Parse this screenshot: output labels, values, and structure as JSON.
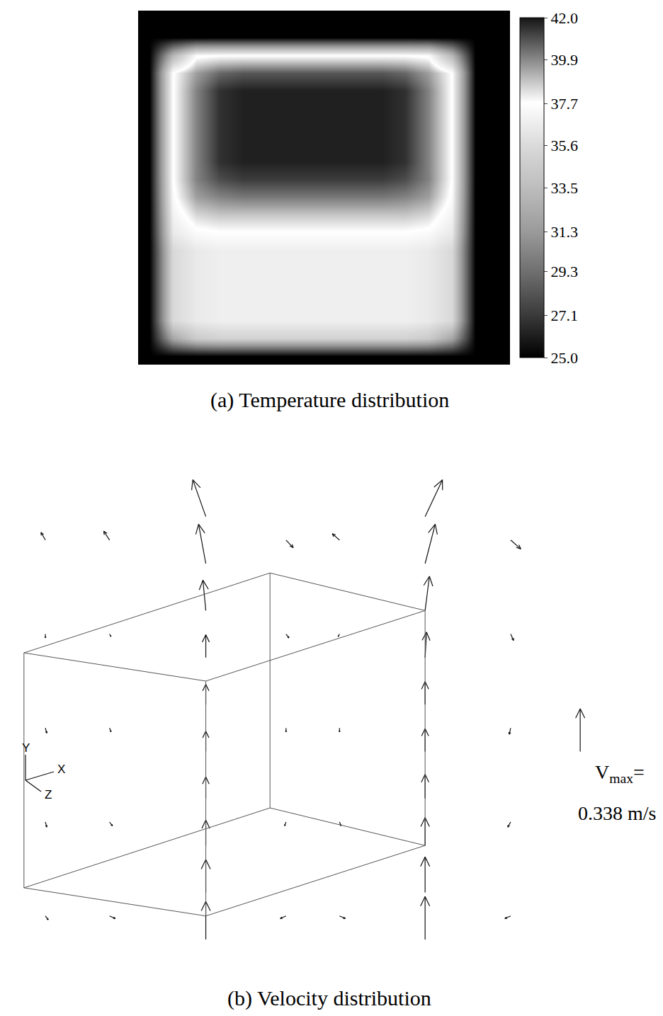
{
  "chart_data": [
    {
      "type": "heatmap",
      "title": "(a) Temperature distribution",
      "tick_labels": false,
      "z": [
        [
          25,
          25,
          25,
          25,
          25,
          25,
          25,
          25,
          25,
          25,
          25,
          25,
          25,
          25,
          25,
          25
        ],
        [
          25,
          25,
          25,
          25,
          25,
          25,
          25,
          25,
          25,
          25,
          25,
          25,
          25,
          25,
          25,
          25
        ],
        [
          25,
          33,
          37.5,
          37.7,
          37.7,
          37.7,
          37.7,
          37.7,
          37.7,
          37.7,
          37.7,
          37.7,
          37.5,
          33,
          25,
          25
        ],
        [
          25,
          37.7,
          39.5,
          40.5,
          40.8,
          40.8,
          40.8,
          40.8,
          40.8,
          40.8,
          40.8,
          40.5,
          39.5,
          37.7,
          25,
          25
        ],
        [
          25,
          37.7,
          40,
          41.5,
          41.8,
          41.8,
          41.8,
          41.8,
          41.8,
          41.8,
          41.8,
          41.5,
          40,
          37.7,
          25,
          25
        ],
        [
          25,
          37.7,
          40,
          41.5,
          41.8,
          41.8,
          41.8,
          41.8,
          41.8,
          41.8,
          41.8,
          41.5,
          40,
          37.7,
          25,
          25
        ],
        [
          25,
          37.7,
          40,
          41.5,
          41.8,
          41.8,
          41.8,
          41.8,
          41.8,
          41.8,
          41.8,
          41.5,
          40,
          37.7,
          25,
          25
        ],
        [
          25,
          37.7,
          40,
          41.5,
          41.8,
          41.8,
          41.8,
          41.8,
          41.8,
          41.8,
          41.8,
          41.5,
          40,
          37.7,
          25,
          25
        ],
        [
          25,
          37.7,
          40,
          41.5,
          41.8,
          41.8,
          41.8,
          41.8,
          41.8,
          41.8,
          41.8,
          41.5,
          40,
          37.7,
          25,
          25
        ],
        [
          25,
          37.7,
          40,
          41,
          41.3,
          41.3,
          41.3,
          41.3,
          41.3,
          41.3,
          41.3,
          41,
          40,
          37.7,
          25,
          25
        ],
        [
          25,
          37.5,
          39.5,
          40,
          40.2,
          40.2,
          40.2,
          40.2,
          40.2,
          40.2,
          40.2,
          40,
          39.5,
          37.5,
          25,
          25
        ],
        [
          25,
          37,
          38.5,
          38.8,
          38.8,
          38.8,
          38.8,
          38.8,
          38.8,
          38.8,
          38.8,
          38.8,
          38.5,
          37,
          25,
          25
        ],
        [
          25,
          36.5,
          37.5,
          37.7,
          37.7,
          37.7,
          37.7,
          37.7,
          37.7,
          37.7,
          37.7,
          37.7,
          37.5,
          36.5,
          25,
          25
        ],
        [
          25,
          35.5,
          36.5,
          36.8,
          36.8,
          36.8,
          36.8,
          36.8,
          36.8,
          36.8,
          36.8,
          36.8,
          36.5,
          35.5,
          25,
          25
        ],
        [
          25,
          35.5,
          36.5,
          36.8,
          36.8,
          36.8,
          36.8,
          36.8,
          36.8,
          36.8,
          36.8,
          36.8,
          36.5,
          35.5,
          25,
          25
        ],
        [
          25,
          35.5,
          36.5,
          36.8,
          36.8,
          36.8,
          36.8,
          36.8,
          36.8,
          36.8,
          36.8,
          36.8,
          36.5,
          35.5,
          25,
          25
        ],
        [
          25,
          35.5,
          36.5,
          36.8,
          36.8,
          36.8,
          36.8,
          36.8,
          36.8,
          36.8,
          36.8,
          36.8,
          36.5,
          35.5,
          25,
          25
        ],
        [
          25,
          35.5,
          36.5,
          36.8,
          36.8,
          36.8,
          36.8,
          36.8,
          36.8,
          36.8,
          36.8,
          36.8,
          36.5,
          35.5,
          25,
          25
        ],
        [
          25,
          32,
          34.5,
          35,
          35,
          35,
          35,
          35,
          35,
          35,
          35,
          35,
          34.5,
          32,
          25,
          25
        ],
        [
          25,
          25,
          25,
          25,
          25,
          25,
          25,
          25,
          25,
          25,
          25,
          25,
          25,
          25,
          25,
          25
        ]
      ],
      "colorbar": {
        "range": [
          25,
          42
        ],
        "ticks": [
          {
            "value": 42,
            "label": "42.0"
          },
          39.9,
          37.7,
          35.6,
          33.5,
          31.3,
          29.3,
          27.1,
          {
            "value": 25,
            "label": "25.0"
          }
        ]
      }
    },
    {
      "type": "vector_field",
      "title": "(b) Velocity distribution",
      "tick_labels": false,
      "axis_labels": {
        "x": "X",
        "y": "Y",
        "z": "Z"
      },
      "vectors": {
        "x": [
          3.5,
          3.5,
          3.5,
          3.5,
          3.5,
          3.5,
          3.5,
          3.5,
          3.5,
          3.5,
          7.6,
          7.6,
          7.6,
          7.6,
          7.6,
          7.6,
          7.6,
          7.6,
          7.6,
          7.6,
          0.5,
          0.5,
          0.5,
          0.5,
          0.5,
          1.7,
          1.7,
          1.7,
          1.7,
          1.7,
          5.0,
          5.0,
          5.0,
          5.0,
          5.0,
          6.0,
          6.0,
          6.0,
          6.0,
          6.0,
          9.2,
          9.2,
          9.2,
          9.2,
          9.2
        ],
        "y": [
          0.5,
          1.5,
          2.5,
          3.5,
          4.5,
          5.5,
          6.5,
          7.5,
          8.5,
          9.5,
          0.5,
          1.5,
          2.5,
          3.5,
          4.5,
          5.5,
          6.5,
          7.5,
          8.5,
          9.5,
          1,
          3,
          5,
          7,
          9,
          1,
          3,
          5,
          7,
          9,
          1,
          3,
          5,
          7,
          9,
          1,
          3,
          5,
          7,
          9,
          1,
          3,
          5,
          7,
          9
        ],
        "u": [
          0,
          0,
          0,
          0,
          0,
          0,
          0,
          -0.02,
          -0.05,
          -0.09,
          0,
          0,
          0,
          0,
          0,
          0,
          0.01,
          0.03,
          0.07,
          0.12,
          0.02,
          0.01,
          0.01,
          0.0,
          -0.03,
          0.04,
          0.02,
          0.01,
          0.01,
          -0.04,
          -0.04,
          -0.01,
          0.0,
          0.02,
          0.05,
          0.04,
          0.01,
          0.0,
          -0.01,
          -0.05,
          -0.04,
          -0.02,
          -0.01,
          0.02,
          0.07
        ],
        "v": [
          0.3,
          0.26,
          0.2,
          0.17,
          0.16,
          0.16,
          0.18,
          0.24,
          0.31,
          0.29,
          0.338,
          0.28,
          0.22,
          0.19,
          0.18,
          0.18,
          0.2,
          0.27,
          0.31,
          0.29,
          -0.03,
          -0.04,
          -0.04,
          -0.03,
          0.06,
          -0.02,
          -0.03,
          -0.03,
          -0.02,
          0.07,
          -0.02,
          -0.03,
          -0.03,
          -0.03,
          -0.06,
          -0.02,
          -0.03,
          -0.03,
          -0.02,
          0.05,
          -0.02,
          -0.04,
          -0.05,
          -0.05,
          -0.07
        ]
      },
      "reference": {
        "value": 0.338,
        "symbol": "V",
        "subscript": "max",
        "suffix": "=",
        "unit": "m/s"
      }
    }
  ]
}
